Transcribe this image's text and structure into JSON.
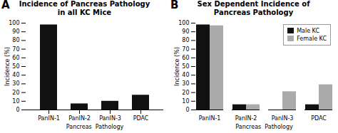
{
  "chart_data": [
    {
      "type": "bar",
      "title": "Incidence of Pancreas Pathology\nin all KC Mice",
      "annotations": [
        "A"
      ],
      "xlabel": "Pancreas  Pathology",
      "ylabel": "Incidence (%)",
      "categories": [
        "PanIN-1",
        "PanIN-2",
        "PanIN-3",
        "PDAC"
      ],
      "values": [
        98,
        7,
        10,
        17
      ],
      "color": "#111111",
      "ylim": [
        0,
        100
      ],
      "yticks": [
        0,
        10,
        20,
        30,
        40,
        50,
        60,
        70,
        80,
        90,
        100
      ]
    },
    {
      "type": "bar",
      "title": "Sex Dependent Incidence of\nPancreas Pathology",
      "annotations": [
        "B"
      ],
      "xlabel": "Pancreas  Pathology",
      "ylabel": "Incidence (%)",
      "categories": [
        "PanIN-1",
        "PanIN-2",
        "PanIN-3",
        "PDAC"
      ],
      "series": [
        {
          "name": "Male KC",
          "color": "#111111",
          "values": [
            98,
            6,
            0,
            6
          ]
        },
        {
          "name": "Female KC",
          "color": "#aaaaaa",
          "values": [
            97,
            6,
            21,
            29
          ]
        }
      ],
      "legend": "upper right",
      "ylim": [
        0,
        100
      ],
      "yticks": [
        0,
        10,
        20,
        30,
        40,
        50,
        60,
        70,
        80,
        90,
        100
      ]
    }
  ]
}
